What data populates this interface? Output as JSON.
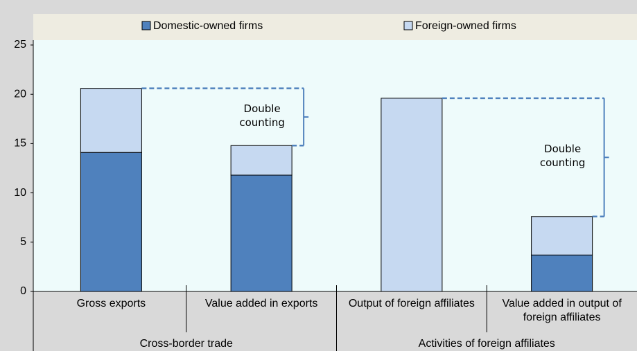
{
  "chart_data": {
    "type": "bar",
    "stacked": true,
    "categories": [
      "Gross exports",
      "Value added in exports",
      "Output of foreign affiliates",
      "Value added in output of foreign affiliates"
    ],
    "category_groups": [
      "Cross-border trade",
      "Activities of foreign affiliates"
    ],
    "series": [
      {
        "name": "Domestic-owned firms",
        "color": "#4f81bd",
        "values": [
          14.1,
          11.8,
          0,
          3.7
        ]
      },
      {
        "name": "Foreign-owned firms",
        "color": "#c6d9f1",
        "values": [
          6.5,
          3.0,
          19.6,
          3.9
        ]
      }
    ],
    "annotations": [
      "Double counting",
      "Double counting"
    ],
    "ylim": [
      0,
      25
    ],
    "yticks": [
      0,
      5,
      10,
      15,
      20,
      25
    ],
    "grid": false,
    "legend": "top"
  }
}
